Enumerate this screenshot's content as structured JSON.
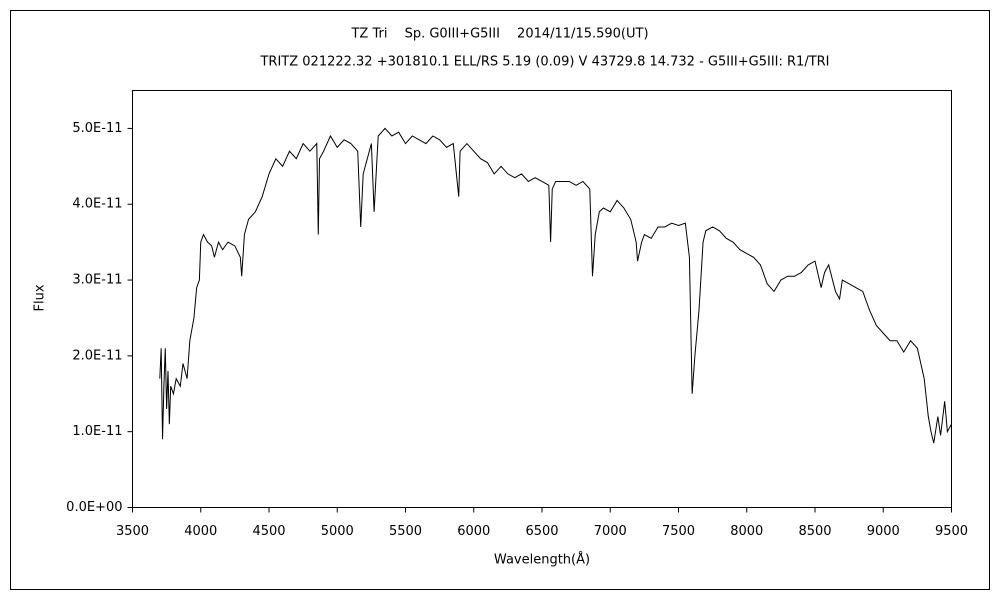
{
  "chart_data": {
    "type": "line",
    "title": "TZ Tri　 Sp. G0III+G5III　 2014/11/15.590(UT)",
    "subtitle": "TRITZ 021222.32 +301810.1 ELL/RS 5.19 (0.09) V 43729.8 14.732 - G5III+G5III: R1/TRI",
    "x_label": "Wavelength(Å)",
    "y_label": "Flux",
    "color": "#000000",
    "grid": false,
    "xlim": [
      3500,
      9500
    ],
    "xticks": [
      3500,
      4000,
      4500,
      5000,
      5500,
      6000,
      6500,
      7000,
      7500,
      8000,
      8500,
      9000,
      9500
    ],
    "ylim": [
      0,
      5.5e-11
    ],
    "yticks": [
      {
        "value": 0,
        "label": "0.0E+00"
      },
      {
        "value": 1e-11,
        "label": "1.0E-11"
      },
      {
        "value": 2e-11,
        "label": "2.0E-11"
      },
      {
        "value": 3e-11,
        "label": "3.0E-11"
      },
      {
        "value": 4e-11,
        "label": "4.0E-11"
      },
      {
        "value": 5e-11,
        "label": "5.0E-11"
      }
    ],
    "x": [
      3700,
      3710,
      3720,
      3730,
      3740,
      3750,
      3760,
      3770,
      3780,
      3800,
      3820,
      3850,
      3870,
      3900,
      3920,
      3950,
      3970,
      3990,
      4000,
      4020,
      4050,
      4080,
      4100,
      4130,
      4160,
      4200,
      4250,
      4290,
      4300,
      4320,
      4350,
      4400,
      4450,
      4500,
      4550,
      4600,
      4650,
      4700,
      4750,
      4800,
      4850,
      4861,
      4870,
      4900,
      4950,
      5000,
      5050,
      5100,
      5150,
      5172,
      5190,
      5250,
      5270,
      5300,
      5350,
      5400,
      5450,
      5500,
      5550,
      5600,
      5650,
      5700,
      5750,
      5800,
      5850,
      5890,
      5900,
      5950,
      6000,
      6050,
      6100,
      6150,
      6200,
      6250,
      6300,
      6350,
      6400,
      6450,
      6500,
      6550,
      6563,
      6575,
      6600,
      6650,
      6700,
      6750,
      6800,
      6850,
      6870,
      6890,
      6920,
      6950,
      7000,
      7050,
      7100,
      7150,
      7190,
      7200,
      7230,
      7250,
      7300,
      7350,
      7400,
      7450,
      7500,
      7550,
      7580,
      7600,
      7620,
      7650,
      7680,
      7700,
      7750,
      7800,
      7850,
      7900,
      7950,
      8000,
      8050,
      8100,
      8150,
      8200,
      8250,
      8300,
      8350,
      8400,
      8450,
      8500,
      8545,
      8570,
      8600,
      8650,
      8680,
      8700,
      8750,
      8800,
      8850,
      8900,
      8950,
      9000,
      9050,
      9100,
      9150,
      9200,
      9250,
      9300,
      9330,
      9350,
      9370,
      9400,
      9420,
      9450,
      9470,
      9500
    ],
    "values": [
      1.7e-11,
      2.1e-11,
      9e-12,
      1.6e-11,
      2.1e-11,
      1.3e-11,
      1.8e-11,
      1.1e-11,
      1.6e-11,
      1.5e-11,
      1.7e-11,
      1.6e-11,
      1.9e-11,
      1.7e-11,
      2.2e-11,
      2.5e-11,
      2.9e-11,
      3e-11,
      3.5e-11,
      3.6e-11,
      3.5e-11,
      3.45e-11,
      3.3e-11,
      3.5e-11,
      3.4e-11,
      3.5e-11,
      3.45e-11,
      3.3e-11,
      3.05e-11,
      3.6e-11,
      3.8e-11,
      3.9e-11,
      4.1e-11,
      4.4e-11,
      4.6e-11,
      4.5e-11,
      4.7e-11,
      4.6e-11,
      4.8e-11,
      4.7e-11,
      4.8e-11,
      3.6e-11,
      4.6e-11,
      4.7e-11,
      4.9e-11,
      4.75e-11,
      4.85e-11,
      4.8e-11,
      4.7e-11,
      3.7e-11,
      4.4e-11,
      4.8e-11,
      3.9e-11,
      4.9e-11,
      5e-11,
      4.9e-11,
      4.95e-11,
      4.8e-11,
      4.9e-11,
      4.85e-11,
      4.8e-11,
      4.9e-11,
      4.85e-11,
      4.75e-11,
      4.8e-11,
      4.1e-11,
      4.7e-11,
      4.8e-11,
      4.7e-11,
      4.6e-11,
      4.55e-11,
      4.4e-11,
      4.5e-11,
      4.4e-11,
      4.35e-11,
      4.4e-11,
      4.3e-11,
      4.35e-11,
      4.3e-11,
      4.25e-11,
      3.5e-11,
      4.2e-11,
      4.3e-11,
      4.3e-11,
      4.3e-11,
      4.25e-11,
      4.3e-11,
      4.2e-11,
      3.05e-11,
      3.6e-11,
      3.9e-11,
      3.95e-11,
      3.9e-11,
      4.05e-11,
      3.95e-11,
      3.8e-11,
      3.5e-11,
      3.25e-11,
      3.5e-11,
      3.6e-11,
      3.55e-11,
      3.7e-11,
      3.7e-11,
      3.75e-11,
      3.72e-11,
      3.75e-11,
      3.3e-11,
      1.5e-11,
      2e-11,
      2.6e-11,
      3.5e-11,
      3.65e-11,
      3.7e-11,
      3.65e-11,
      3.55e-11,
      3.5e-11,
      3.4e-11,
      3.35e-11,
      3.3e-11,
      3.2e-11,
      2.95e-11,
      2.85e-11,
      3e-11,
      3.05e-11,
      3.05e-11,
      3.1e-11,
      3.2e-11,
      3.25e-11,
      2.9e-11,
      3.1e-11,
      3.2e-11,
      2.85e-11,
      2.75e-11,
      3e-11,
      2.95e-11,
      2.9e-11,
      2.85e-11,
      2.6e-11,
      2.4e-11,
      2.3e-11,
      2.2e-11,
      2.2e-11,
      2.05e-11,
      2.2e-11,
      2.1e-11,
      1.7e-11,
      1.2e-11,
      1e-11,
      8.5e-12,
      1.2e-11,
      9.5e-12,
      1.4e-11,
      1e-11,
      1.1e-11
    ]
  }
}
